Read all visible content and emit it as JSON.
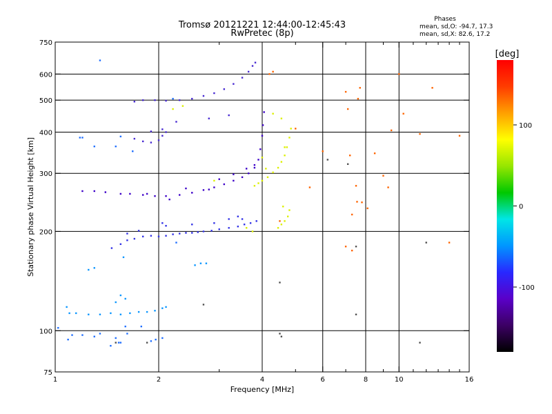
{
  "chart_data": {
    "type": "scatter",
    "title": "Tromsø 20121221 12:44:00-12:45:43",
    "subtitle": "RwPretec (8p)",
    "stats": {
      "heading": "Phases",
      "line_o": "mean, sd,O: -94.7, 17.3",
      "line_x": "mean, sd,X:  82.6, 17.2"
    },
    "xlabel": "Frequency [MHz]",
    "ylabel": "Stationary phase Virtual Height [km]",
    "x_scale": "log",
    "y_scale": "log",
    "xlim": [
      1,
      16
    ],
    "ylim": [
      75,
      750
    ],
    "x_ticks": [
      1,
      2,
      4,
      6,
      8,
      10,
      16
    ],
    "x_minor_ticks": [
      3,
      5,
      7,
      9,
      11,
      12,
      13,
      14,
      15
    ],
    "y_ticks": [
      75,
      100,
      200,
      300,
      400,
      500,
      600,
      750
    ],
    "x_grid": [
      2,
      4,
      6,
      8,
      10
    ],
    "y_grid": [
      100,
      200,
      300,
      400,
      500,
      600
    ],
    "grid": true,
    "colorbar": {
      "label": "[deg]",
      "range": [
        -180,
        180
      ],
      "ticks": [
        100,
        0,
        -100
      ],
      "colormap": [
        "#000000",
        "#3c0064",
        "#5a00c8",
        "#2828ff",
        "#0096ff",
        "#00e6e6",
        "#00c800",
        "#96e600",
        "#ffff00",
        "#ffa000",
        "#ff3c00",
        "#ff0000"
      ]
    },
    "series": [
      {
        "values": [
          [
            1.02,
            102
          ],
          [
            1.09,
            94
          ],
          [
            1.12,
            97
          ],
          [
            1.2,
            97
          ],
          [
            1.3,
            96
          ],
          [
            1.35,
            98
          ],
          [
            1.45,
            90
          ],
          [
            1.5,
            95
          ],
          [
            1.53,
            92
          ],
          [
            1.55,
            92
          ],
          [
            1.6,
            103
          ],
          [
            1.62,
            98
          ],
          [
            1.78,
            103
          ],
          [
            1.9,
            93
          ],
          [
            1.96,
            94
          ],
          [
            2.05,
            95
          ],
          [
            1.18,
            385
          ],
          [
            1.2,
            385
          ],
          [
            1.3,
            362
          ],
          [
            1.5,
            362
          ],
          [
            1.35,
            660
          ],
          [
            1.55,
            388
          ],
          [
            1.68,
            350
          ],
          [
            2.2,
            505
          ],
          [
            2.25,
            185
          ]
        ],
        "color": "#1e6eff"
      },
      {
        "values": [
          [
            1.08,
            118
          ],
          [
            1.1,
            113
          ],
          [
            1.15,
            113
          ],
          [
            1.25,
            112
          ],
          [
            1.35,
            112
          ],
          [
            1.45,
            113
          ],
          [
            1.55,
            112
          ],
          [
            1.65,
            113
          ],
          [
            1.75,
            114
          ],
          [
            1.85,
            114
          ],
          [
            1.95,
            115
          ],
          [
            2.05,
            117
          ],
          [
            2.1,
            118
          ],
          [
            1.5,
            122
          ],
          [
            1.55,
            128
          ],
          [
            1.6,
            125
          ],
          [
            1.25,
            153
          ],
          [
            1.3,
            155
          ],
          [
            1.58,
            167
          ],
          [
            2.55,
            158
          ],
          [
            2.65,
            160
          ],
          [
            2.75,
            160
          ]
        ],
        "color": "#0a96ff"
      },
      {
        "values": [
          [
            1.46,
            178
          ],
          [
            1.55,
            183
          ],
          [
            1.62,
            188
          ],
          [
            1.7,
            190
          ],
          [
            1.8,
            193
          ],
          [
            1.9,
            194
          ],
          [
            2.0,
            193
          ],
          [
            2.1,
            194
          ],
          [
            2.2,
            196
          ],
          [
            2.3,
            197
          ],
          [
            2.4,
            198
          ],
          [
            2.5,
            198
          ],
          [
            2.6,
            199
          ],
          [
            2.7,
            200
          ],
          [
            2.85,
            201
          ],
          [
            3.0,
            203
          ],
          [
            3.2,
            205
          ],
          [
            3.4,
            207
          ],
          [
            3.55,
            210
          ],
          [
            3.7,
            212
          ],
          [
            3.85,
            215
          ],
          [
            1.62,
            197
          ],
          [
            1.75,
            201
          ],
          [
            2.05,
            212
          ],
          [
            2.1,
            208
          ],
          [
            2.5,
            210
          ],
          [
            2.9,
            212
          ],
          [
            3.2,
            218
          ],
          [
            3.4,
            222
          ],
          [
            3.5,
            218
          ]
        ],
        "color": "#3232e6"
      },
      {
        "values": [
          [
            1.2,
            265
          ],
          [
            1.3,
            265
          ],
          [
            1.4,
            263
          ],
          [
            1.55,
            260
          ],
          [
            1.65,
            260
          ],
          [
            1.8,
            258
          ],
          [
            1.95,
            256
          ],
          [
            2.1,
            256
          ],
          [
            2.3,
            258
          ],
          [
            2.5,
            262
          ],
          [
            2.7,
            267
          ],
          [
            2.9,
            272
          ],
          [
            3.1,
            278
          ],
          [
            3.3,
            285
          ],
          [
            3.5,
            292
          ],
          [
            3.65,
            300
          ],
          [
            3.8,
            312
          ],
          [
            3.9,
            330
          ],
          [
            3.95,
            355
          ],
          [
            4.0,
            390
          ],
          [
            4.02,
            420
          ],
          [
            4.05,
            460
          ],
          [
            1.85,
            260
          ],
          [
            2.15,
            250
          ],
          [
            2.4,
            270
          ],
          [
            2.8,
            268
          ],
          [
            3.0,
            288
          ],
          [
            3.3,
            298
          ],
          [
            3.6,
            310
          ],
          [
            3.8,
            318
          ]
        ],
        "color": "#3c00c8"
      },
      {
        "values": [
          [
            1.7,
            495
          ],
          [
            1.8,
            500
          ],
          [
            1.95,
            500
          ],
          [
            2.1,
            498
          ],
          [
            2.3,
            500
          ],
          [
            2.5,
            505
          ],
          [
            2.7,
            515
          ],
          [
            2.9,
            525
          ],
          [
            3.1,
            540
          ],
          [
            3.3,
            560
          ],
          [
            3.5,
            585
          ],
          [
            3.65,
            610
          ],
          [
            3.75,
            635
          ],
          [
            3.82,
            650
          ],
          [
            1.7,
            382
          ],
          [
            1.8,
            375
          ],
          [
            1.9,
            372
          ],
          [
            2.0,
            378
          ],
          [
            2.05,
            390
          ],
          [
            2.1,
            400
          ],
          [
            1.9,
            402
          ],
          [
            2.05,
            408
          ],
          [
            2.25,
            430
          ],
          [
            2.8,
            440
          ],
          [
            3.2,
            450
          ]
        ],
        "color": "#4628d2"
      },
      {
        "values": [
          [
            3.8,
            275
          ],
          [
            3.9,
            280
          ],
          [
            4.0,
            285
          ],
          [
            4.15,
            292
          ],
          [
            4.3,
            302
          ],
          [
            4.45,
            312
          ],
          [
            4.55,
            325
          ],
          [
            4.65,
            340
          ],
          [
            4.72,
            360
          ],
          [
            4.8,
            385
          ],
          [
            4.85,
            410
          ],
          [
            4.45,
            205
          ],
          [
            4.55,
            210
          ],
          [
            4.65,
            215
          ],
          [
            4.75,
            222
          ],
          [
            4.6,
            238
          ],
          [
            4.8,
            232
          ],
          [
            4.3,
            455
          ],
          [
            4.55,
            440
          ],
          [
            4.65,
            360
          ],
          [
            4.1,
            310
          ],
          [
            2.35,
            480
          ],
          [
            2.2,
            470
          ],
          [
            2.9,
            285
          ],
          [
            3.6,
            205
          ],
          [
            3.75,
            200
          ],
          [
            4.0,
            335
          ]
        ],
        "color": "#dcf000"
      },
      {
        "values": [
          [
            4.2,
            600
          ],
          [
            4.3,
            610
          ],
          [
            5.0,
            410
          ],
          [
            5.5,
            272
          ],
          [
            6.0,
            350
          ],
          [
            7.0,
            530
          ],
          [
            7.1,
            470
          ],
          [
            7.2,
            340
          ],
          [
            7.5,
            275
          ],
          [
            7.55,
            246
          ],
          [
            7.8,
            245
          ],
          [
            8.1,
            235
          ],
          [
            8.5,
            345
          ],
          [
            9.0,
            295
          ],
          [
            9.5,
            405
          ],
          [
            10.0,
            600
          ],
          [
            10.3,
            455
          ],
          [
            11.5,
            395
          ],
          [
            12.5,
            545
          ],
          [
            14.0,
            185
          ],
          [
            15.0,
            390
          ],
          [
            7.0,
            180
          ],
          [
            7.3,
            225
          ],
          [
            7.6,
            505
          ],
          [
            7.7,
            545
          ],
          [
            4.5,
            215
          ],
          [
            7.3,
            175
          ],
          [
            9.3,
            272
          ]
        ],
        "color": "#ff6400"
      },
      {
        "values": [
          [
            4.5,
            98
          ],
          [
            4.55,
            96
          ],
          [
            4.5,
            140
          ],
          [
            7.5,
            112
          ],
          [
            6.2,
            330
          ],
          [
            7.5,
            180
          ],
          [
            7.1,
            320
          ],
          [
            12.0,
            185
          ],
          [
            11.5,
            92
          ],
          [
            2.7,
            120
          ],
          [
            1.5,
            92
          ],
          [
            1.85,
            92
          ]
        ],
        "color": "#505050"
      }
    ]
  }
}
